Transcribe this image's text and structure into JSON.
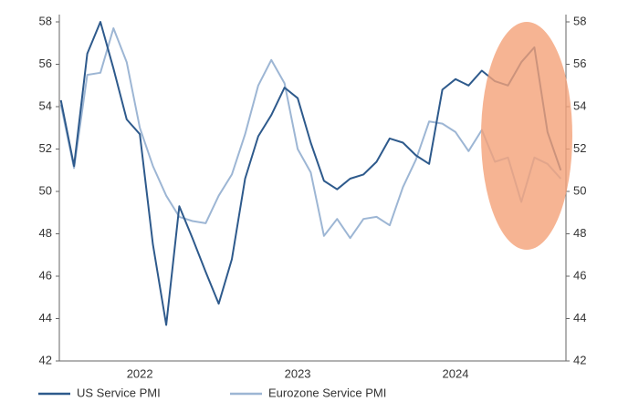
{
  "chart_data": {
    "type": "line",
    "x": [
      2022,
      2022.083,
      2022.167,
      2022.25,
      2022.333,
      2022.417,
      2022.5,
      2022.583,
      2022.667,
      2022.75,
      2022.833,
      2022.917,
      2023,
      2023.083,
      2023.167,
      2023.25,
      2023.333,
      2023.417,
      2023.5,
      2023.583,
      2023.667,
      2023.75,
      2023.833,
      2023.917,
      2024,
      2024.083,
      2024.167,
      2024.25,
      2024.333,
      2024.417,
      2024.5,
      2024.583,
      2024.667,
      2024.75,
      2024.833,
      2024.917,
      2025,
      2025.083,
      2025.167
    ],
    "series": [
      {
        "name": "US Service PMI",
        "color": "#2e5a8c",
        "values": [
          54.3,
          51.2,
          56.5,
          58,
          55.8,
          53.4,
          52.7,
          47.5,
          43.7,
          49.3,
          47.8,
          46.2,
          44.7,
          46.8,
          50.6,
          52.6,
          53.6,
          54.9,
          54.4,
          52.3,
          50.5,
          50.1,
          50.6,
          50.8,
          51.4,
          52.5,
          52.3,
          51.7,
          51.3,
          54.8,
          55.3,
          55,
          55.7,
          55.2,
          55,
          56.1,
          56.8,
          52.8,
          51.0
        ]
      },
      {
        "name": "Eurozone Service PMI",
        "color": "#9db6d4",
        "values": [
          54.1,
          51.1,
          55.5,
          55.6,
          57.7,
          56.1,
          53.0,
          51.2,
          49.8,
          48.8,
          48.6,
          48.5,
          49.8,
          50.8,
          52.7,
          55.0,
          56.2,
          55.1,
          52.0,
          50.9,
          47.9,
          48.7,
          47.8,
          48.7,
          48.8,
          48.4,
          50.2,
          51.5,
          53.3,
          53.2,
          52.8,
          51.9,
          52.9,
          51.4,
          51.6,
          49.5,
          51.6,
          51.3,
          50.6
        ]
      }
    ],
    "xlim": [
      2021.99,
      2025.2
    ],
    "xticks": [
      {
        "value": 2022.5,
        "label": "2022"
      },
      {
        "value": 2023.5,
        "label": "2023"
      },
      {
        "value": 2024.5,
        "label": "2024"
      }
    ],
    "ylim": [
      42,
      58
    ],
    "yticks": [
      42,
      44,
      46,
      48,
      50,
      52,
      54,
      56,
      58
    ],
    "y2lim": [
      42,
      58
    ],
    "y2ticks": [
      42,
      44,
      46,
      48,
      50,
      52,
      54,
      56,
      58
    ],
    "legend": "bottom"
  }
}
